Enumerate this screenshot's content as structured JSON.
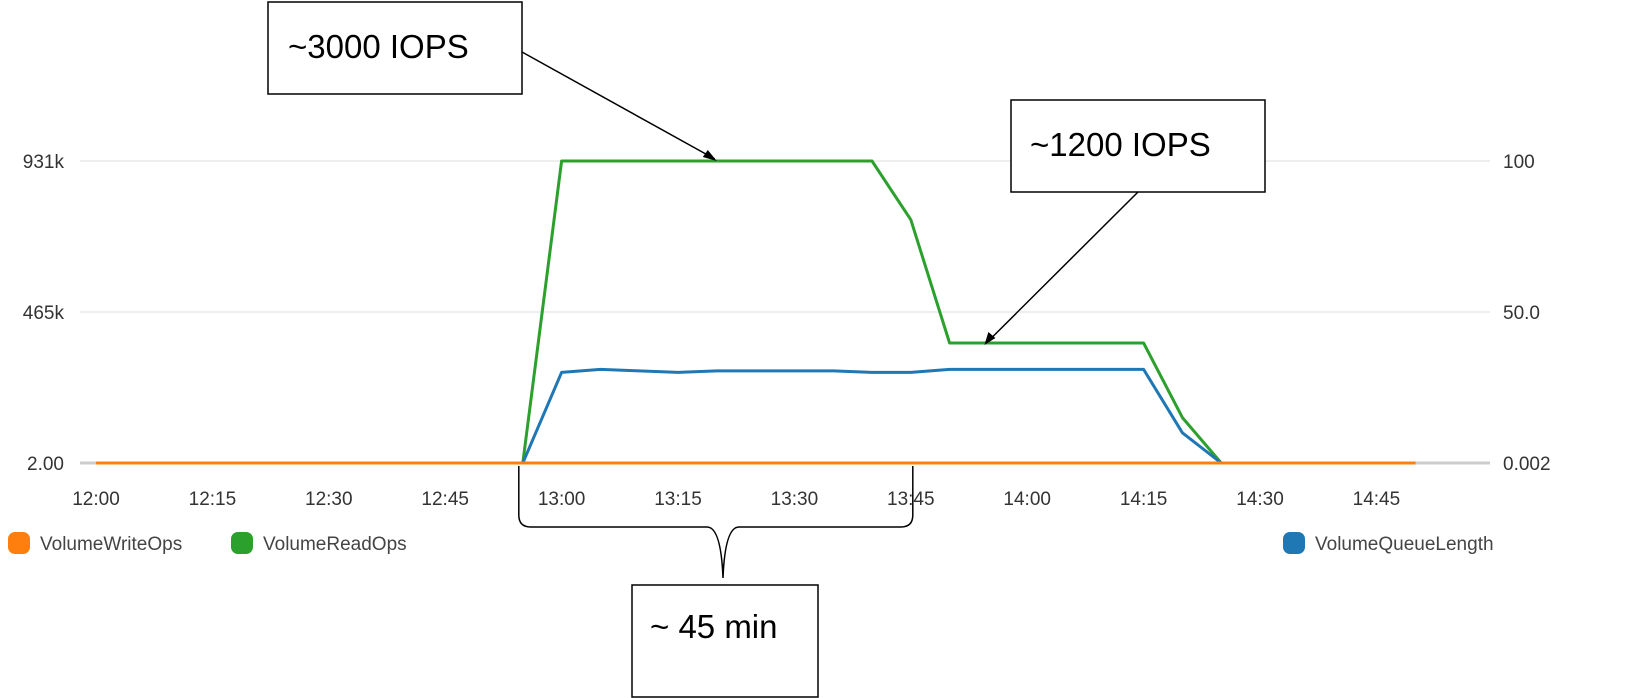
{
  "chart_data": {
    "type": "line",
    "x": [
      "12:00",
      "12:05",
      "12:10",
      "12:15",
      "12:20",
      "12:25",
      "12:30",
      "12:35",
      "12:40",
      "12:45",
      "12:50",
      "12:55",
      "13:00",
      "13:05",
      "13:10",
      "13:15",
      "13:20",
      "13:25",
      "13:30",
      "13:35",
      "13:40",
      "13:45",
      "13:50",
      "13:55",
      "14:00",
      "14:05",
      "14:10",
      "14:15",
      "14:20",
      "14:25",
      "14:30",
      "14:35",
      "14:40",
      "14:45",
      "14:50"
    ],
    "x_ticks": [
      "12:00",
      "12:15",
      "12:30",
      "12:45",
      "13:00",
      "13:15",
      "13:30",
      "13:45",
      "14:00",
      "14:15",
      "14:30",
      "14:45"
    ],
    "y_left": {
      "ticks": [
        "2.00",
        "465k",
        "931k"
      ],
      "range": [
        2,
        931000
      ]
    },
    "y_right": {
      "ticks": [
        "0.002",
        "50.0",
        "100"
      ],
      "range": [
        0.002,
        100
      ]
    },
    "grid": true,
    "legend_placement": "bottom",
    "series": [
      {
        "name": "VolumeWriteOps",
        "axis": "left",
        "color": "#ff7f0e",
        "values": [
          2,
          2,
          2,
          2,
          2,
          2,
          2,
          2,
          2,
          2,
          2,
          2,
          2,
          2,
          2,
          2,
          2,
          2,
          2,
          2,
          2,
          2,
          2,
          2,
          2,
          2,
          2,
          2,
          2,
          2,
          2,
          2,
          2,
          2,
          2
        ]
      },
      {
        "name": "VolumeReadOps",
        "axis": "left",
        "color": "#2ca02c",
        "values": [
          2,
          2,
          2,
          2,
          2,
          2,
          2,
          2,
          2,
          2,
          2,
          2,
          931000,
          931000,
          931000,
          931000,
          931000,
          931000,
          931000,
          931000,
          931000,
          750000,
          370000,
          370000,
          370000,
          370000,
          370000,
          370000,
          140000,
          2,
          2,
          2,
          2,
          2,
          2
        ]
      },
      {
        "name": "VolumeQueueLength",
        "axis": "right",
        "color": "#1f77b4",
        "values": [
          0.002,
          0.002,
          0.002,
          0.002,
          0.002,
          0.002,
          0.002,
          0.002,
          0.002,
          0.002,
          0.002,
          0.002,
          30,
          31,
          30.5,
          30,
          30.5,
          30.5,
          30.5,
          30.5,
          30,
          30,
          31,
          31,
          31,
          31,
          31,
          31,
          10,
          0.002,
          0.002,
          0.002,
          0.002,
          0.002,
          0.002
        ]
      }
    ],
    "annotations": [
      {
        "text": "~3000 IOPS",
        "points_to": {
          "x": "13:20",
          "y": 931000,
          "axis": "left"
        }
      },
      {
        "text": "~1200 IOPS",
        "points_to": {
          "x": "13:55",
          "y": 370000,
          "axis": "left"
        }
      },
      {
        "text": "~ 45 min",
        "spans": [
          "12:55",
          "13:45"
        ]
      }
    ]
  }
}
